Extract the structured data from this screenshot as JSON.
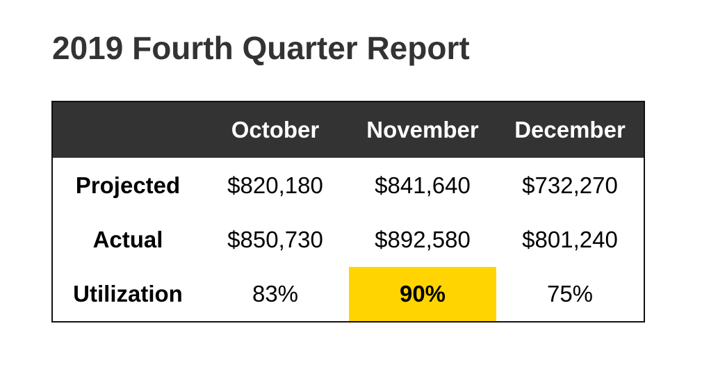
{
  "title": "2019 Fourth Quarter Report",
  "table": {
    "columns": [
      "October",
      "November",
      "December"
    ],
    "rows": [
      {
        "label": "Projected",
        "values": [
          "$820,180",
          "$841,640",
          "$732,270"
        ]
      },
      {
        "label": "Actual",
        "values": [
          "$850,730",
          "$892,580",
          "$801,240"
        ]
      },
      {
        "label": "Utilization",
        "values": [
          "83%",
          "90%",
          "75%"
        ]
      }
    ],
    "highlight_color": "#ffd400",
    "header_bg": "#333333"
  }
}
